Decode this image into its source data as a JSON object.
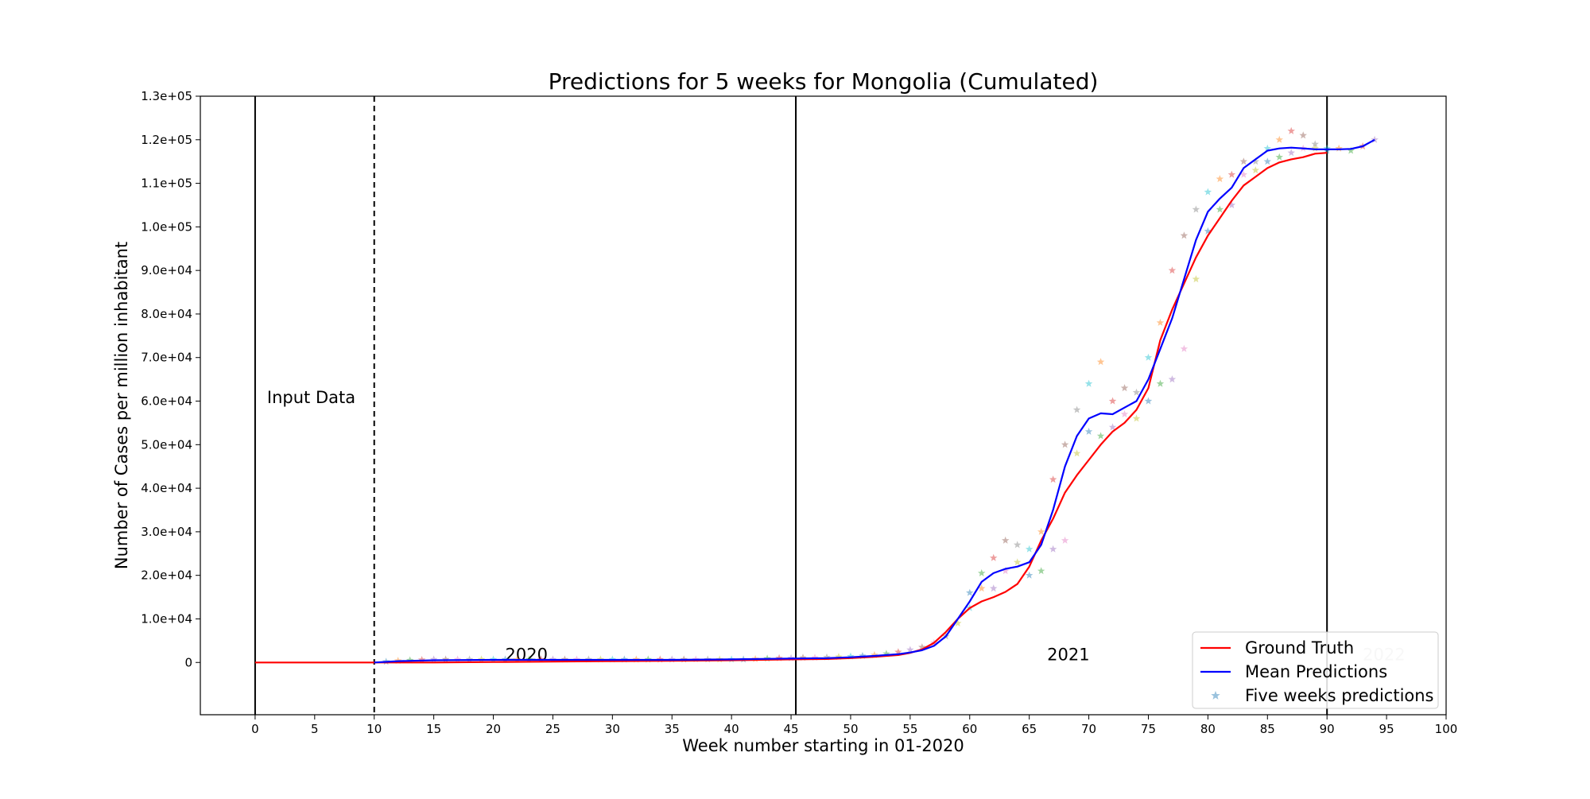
{
  "chart_data": {
    "type": "line",
    "title": "Predictions for 5 weeks for Mongolia (Cumulated)",
    "xlabel": "Week number starting in 01-2020",
    "ylabel": "Number of Cases per million inhabitant",
    "xlim": [
      -4.6,
      100
    ],
    "ylim": [
      -12000,
      130000
    ],
    "x_ticks": [
      0,
      5,
      10,
      15,
      20,
      25,
      30,
      35,
      40,
      45,
      50,
      55,
      60,
      65,
      70,
      75,
      80,
      85,
      90,
      95,
      100
    ],
    "x_tick_labels": [
      "0",
      "5",
      "10",
      "15",
      "20",
      "25",
      "30",
      "35",
      "40",
      "45",
      "50",
      "55",
      "60",
      "65",
      "70",
      "75",
      "80",
      "85",
      "90",
      "95",
      "100"
    ],
    "y_ticks": [
      0,
      10000,
      20000,
      30000,
      40000,
      50000,
      60000,
      70000,
      80000,
      90000,
      100000,
      110000,
      120000,
      130000
    ],
    "y_tick_labels": [
      "0",
      "1.0e+04",
      "2.0e+04",
      "3.0e+04",
      "4.0e+04",
      "5.0e+04",
      "6.0e+04",
      "7.0e+04",
      "8.0e+04",
      "9.0e+04",
      "1.0e+05",
      "1.1e+05",
      "1.2e+05",
      "1.3e+05"
    ],
    "grid": false,
    "legend_position": "bottom-right",
    "vertical_lines": [
      {
        "x": 0,
        "style": "solid"
      },
      {
        "x": 10,
        "style": "dashed"
      },
      {
        "x": 45.4,
        "style": "solid"
      },
      {
        "x": 90,
        "style": "solid"
      }
    ],
    "annotations": [
      {
        "text": "Input Data",
        "x": 1,
        "y": 59000
      },
      {
        "text": "2020",
        "x": 21,
        "y": 0
      },
      {
        "text": "2021",
        "x": 66.5,
        "y": 0
      },
      {
        "text": "2022",
        "x": 93,
        "y": 0,
        "faded": true
      }
    ],
    "series": [
      {
        "name": "Ground Truth",
        "color": "#ff0000",
        "x": [
          0,
          5,
          10,
          15,
          20,
          25,
          30,
          35,
          40,
          45,
          48,
          50,
          52,
          54,
          55,
          56,
          57,
          58,
          59,
          60,
          61,
          62,
          63,
          64,
          65,
          66,
          67,
          68,
          69,
          70,
          71,
          72,
          73,
          74,
          75,
          76,
          77,
          78,
          79,
          80,
          81,
          82,
          83,
          84,
          85,
          86,
          87,
          88,
          89,
          90
        ],
        "y": [
          0,
          0,
          0,
          0,
          100,
          200,
          300,
          400,
          500,
          700,
          800,
          1000,
          1300,
          1700,
          2200,
          3000,
          4500,
          7000,
          10000,
          12500,
          14000,
          15000,
          16200,
          18000,
          22000,
          28000,
          33000,
          39000,
          43000,
          46500,
          50000,
          53000,
          55000,
          58000,
          63000,
          74000,
          81000,
          87000,
          93000,
          98000,
          102000,
          106000,
          109500,
          111500,
          113500,
          114800,
          115500,
          116000,
          116800,
          117000
        ]
      },
      {
        "name": "Mean Predictions",
        "color": "#0000ff",
        "x": [
          10,
          12,
          15,
          20,
          25,
          30,
          35,
          40,
          45,
          48,
          50,
          52,
          54,
          55,
          56,
          57,
          58,
          59,
          60,
          61,
          62,
          63,
          64,
          65,
          66,
          67,
          68,
          69,
          70,
          71,
          72,
          73,
          74,
          75,
          76,
          77,
          78,
          79,
          80,
          81,
          82,
          83,
          84,
          85,
          86,
          87,
          88,
          89,
          90,
          91,
          92,
          93,
          94
        ],
        "y": [
          0,
          300,
          500,
          600,
          600,
          600,
          600,
          700,
          900,
          1000,
          1200,
          1500,
          1900,
          2300,
          2800,
          3800,
          6000,
          10000,
          14000,
          18500,
          20500,
          21500,
          22000,
          23000,
          27000,
          35000,
          45000,
          52000,
          56000,
          57200,
          57000,
          58500,
          60000,
          65000,
          72000,
          79000,
          88000,
          97000,
          103500,
          106500,
          109000,
          113500,
          115500,
          117500,
          118000,
          118200,
          118000,
          117800,
          117800,
          117800,
          117900,
          118500,
          120000
        ]
      },
      {
        "name": "Five weeks predictions",
        "type": "scatter",
        "marker": "star",
        "colors": [
          "#1f77b4",
          "#ff7f0e",
          "#2ca02c",
          "#d62728",
          "#9467bd",
          "#8c564b",
          "#e377c2",
          "#7f7f7f",
          "#bcbd22",
          "#17becf"
        ],
        "x": [
          11,
          12,
          13,
          14,
          15,
          16,
          17,
          18,
          19,
          20,
          21,
          22,
          23,
          24,
          25,
          26,
          27,
          28,
          29,
          30,
          31,
          32,
          33,
          34,
          35,
          36,
          37,
          38,
          39,
          40,
          41,
          42,
          43,
          44,
          45,
          46,
          47,
          48,
          49,
          50,
          51,
          52,
          53,
          54,
          55,
          56,
          57,
          58,
          59,
          60,
          60,
          61,
          61,
          62,
          62,
          63,
          63,
          64,
          64,
          65,
          65,
          66,
          66,
          67,
          67,
          68,
          68,
          69,
          69,
          70,
          70,
          71,
          71,
          72,
          72,
          73,
          73,
          74,
          74,
          75,
          75,
          76,
          76,
          77,
          77,
          78,
          78,
          79,
          79,
          80,
          80,
          81,
          81,
          82,
          82,
          83,
          83,
          84,
          84,
          85,
          85,
          86,
          86,
          87,
          87,
          88,
          88,
          89,
          89,
          90,
          90,
          91,
          92,
          93,
          94
        ],
        "y": [
          200,
          400,
          500,
          600,
          700,
          700,
          700,
          700,
          700,
          700,
          700,
          700,
          700,
          700,
          700,
          700,
          700,
          700,
          700,
          700,
          700,
          700,
          700,
          700,
          700,
          700,
          700,
          700,
          700,
          700,
          700,
          800,
          900,
          1000,
          1000,
          1100,
          1100,
          1200,
          1300,
          1400,
          1500,
          1700,
          2000,
          2400,
          2900,
          3500,
          4500,
          6000,
          9000,
          12500,
          16000,
          17000,
          20500,
          24000,
          17000,
          28000,
          21000,
          27000,
          23000,
          26000,
          20000,
          30000,
          21000,
          42000,
          26000,
          50000,
          28000,
          58000,
          48000,
          64000,
          53000,
          69000,
          52000,
          60000,
          54000,
          63000,
          57000,
          62000,
          56000,
          70000,
          60000,
          78000,
          64000,
          90000,
          65000,
          98000,
          72000,
          104000,
          88000,
          108000,
          99000,
          111000,
          104000,
          112000,
          105000,
          115000,
          112000,
          115000,
          113000,
          118000,
          115000,
          120000,
          116000,
          122000,
          117000,
          121000,
          118000,
          119000,
          118000,
          118000,
          117500,
          118000,
          117500,
          118500,
          120000
        ]
      }
    ]
  },
  "legend": {
    "items": [
      {
        "label": "Ground Truth",
        "color": "#ff0000",
        "marker": "line"
      },
      {
        "label": "Mean Predictions",
        "color": "#0000ff",
        "marker": "line"
      },
      {
        "label": "Five weeks predictions",
        "color": "#1f77b4",
        "marker": "star"
      }
    ]
  }
}
